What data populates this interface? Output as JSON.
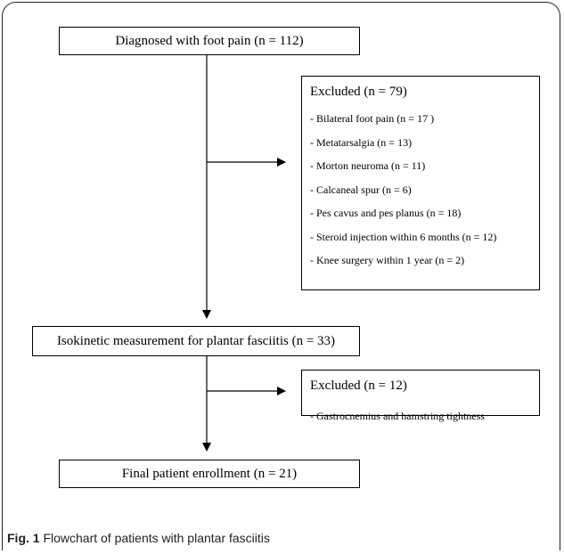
{
  "diagram": {
    "top_box": "Diagnosed with foot pain (n = 112)",
    "excluded1": {
      "title": "Excluded (n = 79)",
      "items": [
        "- Bilateral foot pain (n = 17 )",
        "- Metatarsalgia (n = 13)",
        "- Morton neuroma (n = 11)",
        "- Calcaneal spur (n = 6)",
        "- Pes cavus and pes planus (n = 18)",
        "- Steroid injection within 6 months (n = 12)",
        "- Knee surgery within 1 year (n = 2)"
      ]
    },
    "middle_box": "Isokinetic measurement for plantar fasciitis (n = 33)",
    "excluded2": {
      "title": "Excluded (n = 12)",
      "items": [
        "- Gastrocnemius and hamstring tightness"
      ]
    },
    "bottom_box": "Final patient enrollment (n = 21)"
  },
  "caption": {
    "label": "Fig. 1",
    "text": "Flowchart of patients with plantar fasciitis"
  }
}
